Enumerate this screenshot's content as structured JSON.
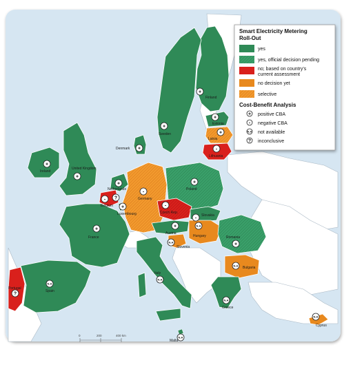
{
  "map": {
    "legend": {
      "title_line1": "Smart Electricity Metering",
      "title_line2": "Roll-Out",
      "items": [
        {
          "label": "yes",
          "color": "#2f8a57"
        },
        {
          "label": "yes, official decision pending",
          "color": "#3aa06a"
        },
        {
          "label": "no; based on country's",
          "label2": "current assessment",
          "color": "#d9201c"
        },
        {
          "label": "no decision yet",
          "color": "#e8891e"
        },
        {
          "label": "selective",
          "color": "#f29a2e"
        }
      ],
      "cba_title": "Cost-Benefit Analysis",
      "cba_items": [
        {
          "label": "positive CBA",
          "symbol": "+"
        },
        {
          "label": "negative CBA",
          "symbol": "-"
        },
        {
          "label": "not available",
          "symbol": "N.A"
        },
        {
          "label": "inconclusive",
          "symbol": "?"
        }
      ]
    },
    "countries": {
      "finland": "Finland",
      "sweden": "Sweden",
      "estonia": "Estonia",
      "latvia": "Latvia",
      "lithuania": "Lithuania",
      "denmark": "Denmark",
      "ireland": "Ireland",
      "uk": "United Kingdom",
      "netherlands": "Netherlands",
      "belgium": "Belgium",
      "luxembourg": "Luxembourg",
      "germany": "Germany",
      "poland": "Poland",
      "czech": "Czech Rep.",
      "slovakia": "Slovakia",
      "austria": "Austria",
      "hungary": "Hungary",
      "slovenia": "Slovenia",
      "romania": "Romania",
      "bulgaria": "Bulgaria",
      "france": "France",
      "portugal": "Portugal",
      "spain": "Spain",
      "italy": "Italy",
      "greece": "Greece",
      "malta": "Malta",
      "cyprus": "Cyprus"
    },
    "scale": {
      "t0": "0",
      "t1": "200",
      "t2": "400 km"
    },
    "colors": {
      "sea": "#d6e6f2",
      "non_eu": "#ffffff",
      "border": "#8aa0b0"
    }
  }
}
